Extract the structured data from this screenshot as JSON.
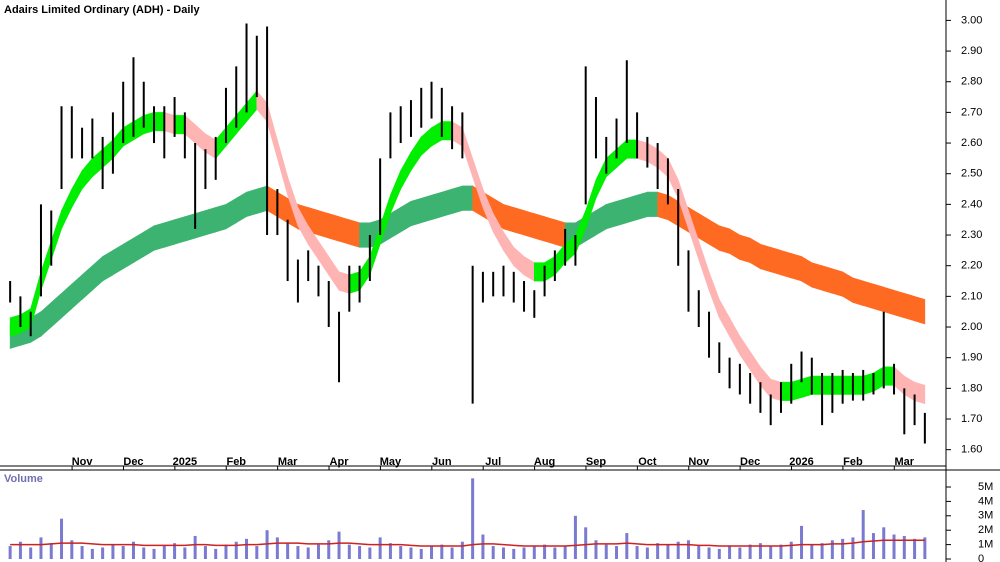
{
  "chart_data": [
    {
      "type": "ohlc",
      "title": "Adairs Limited Ordinary (ADH) - Daily",
      "categories": [
        null,
        null,
        null,
        null,
        null,
        null,
        null,
        "Nov",
        null,
        null,
        null,
        null,
        "Dec",
        null,
        null,
        null,
        null,
        "2025",
        null,
        null,
        null,
        null,
        "Feb",
        null,
        null,
        null,
        null,
        "Mar",
        null,
        null,
        null,
        null,
        "Apr",
        null,
        null,
        null,
        null,
        "May",
        null,
        null,
        null,
        null,
        "Jun",
        null,
        null,
        null,
        null,
        "Jul",
        null,
        null,
        null,
        null,
        "Aug",
        null,
        null,
        null,
        null,
        "Sep",
        null,
        null,
        null,
        null,
        "Oct",
        null,
        null,
        null,
        null,
        "Nov",
        null,
        null,
        null,
        null,
        "Dec",
        null,
        null,
        null,
        null,
        "2026",
        null,
        null,
        null,
        null,
        "Feb",
        null,
        null,
        null,
        null,
        "Mar",
        null,
        null
      ],
      "high": [
        2.15,
        2.1,
        2.05,
        2.4,
        2.38,
        2.72,
        2.72,
        2.65,
        2.68,
        2.62,
        2.7,
        2.8,
        2.88,
        2.8,
        2.72,
        2.72,
        2.75,
        2.7,
        2.6,
        2.58,
        2.62,
        2.78,
        2.85,
        2.99,
        2.95,
        2.98,
        2.45,
        2.35,
        2.22,
        2.25,
        2.2,
        2.15,
        2.05,
        2.2,
        2.2,
        2.3,
        2.55,
        2.7,
        2.72,
        2.74,
        2.78,
        2.8,
        2.78,
        2.72,
        2.7,
        2.2,
        2.18,
        2.18,
        2.2,
        2.18,
        2.15,
        2.12,
        2.2,
        2.25,
        2.32,
        2.3,
        2.85,
        2.75,
        2.62,
        2.68,
        2.87,
        2.7,
        2.62,
        2.6,
        2.55,
        2.45,
        2.25,
        2.12,
        2.05,
        1.95,
        1.9,
        1.88,
        1.85,
        1.82,
        1.78,
        1.82,
        1.88,
        1.92,
        1.9,
        1.85,
        1.85,
        1.86,
        1.85,
        1.86,
        1.85,
        2.05,
        1.88,
        1.8,
        1.78,
        1.72
      ],
      "low": [
        2.08,
        2.0,
        1.97,
        2.1,
        2.2,
        2.45,
        2.55,
        2.55,
        2.55,
        2.45,
        2.5,
        2.6,
        2.62,
        2.65,
        2.6,
        2.55,
        2.62,
        2.55,
        2.32,
        2.45,
        2.48,
        2.6,
        2.65,
        2.7,
        2.75,
        2.3,
        2.3,
        2.15,
        2.08,
        2.15,
        2.1,
        2.0,
        1.82,
        2.05,
        2.08,
        2.15,
        2.3,
        2.55,
        2.6,
        2.62,
        2.65,
        2.68,
        2.62,
        2.58,
        2.55,
        1.75,
        2.08,
        2.1,
        2.1,
        2.08,
        2.05,
        2.03,
        2.1,
        2.15,
        2.2,
        2.2,
        2.4,
        2.55,
        2.5,
        2.55,
        2.6,
        2.55,
        2.52,
        2.45,
        2.4,
        2.2,
        2.05,
        2.0,
        1.9,
        1.85,
        1.8,
        1.78,
        1.75,
        1.72,
        1.68,
        1.72,
        1.75,
        1.82,
        1.78,
        1.68,
        1.72,
        1.75,
        1.76,
        1.76,
        1.78,
        1.8,
        1.78,
        1.65,
        1.68,
        1.62
      ],
      "ribbons": [
        {
          "upper": [
            2.03,
            2.04,
            2.06,
            2.18,
            2.28,
            2.38,
            2.45,
            2.51,
            2.55,
            2.58,
            2.61,
            2.65,
            2.67,
            2.69,
            2.7,
            2.7,
            2.69,
            2.69,
            2.66,
            2.63,
            2.61,
            2.65,
            2.69,
            2.73,
            2.77,
            2.73,
            2.61,
            2.49,
            2.39,
            2.33,
            2.28,
            2.23,
            2.18,
            2.17,
            2.18,
            2.23,
            2.33,
            2.43,
            2.51,
            2.57,
            2.62,
            2.65,
            2.67,
            2.67,
            2.65,
            2.55,
            2.45,
            2.37,
            2.31,
            2.26,
            2.23,
            2.21,
            2.21,
            2.23,
            2.27,
            2.3,
            2.38,
            2.48,
            2.55,
            2.58,
            2.61,
            2.61,
            2.6,
            2.58,
            2.55,
            2.48,
            2.38,
            2.28,
            2.18,
            2.09,
            2.03,
            1.97,
            1.92,
            1.87,
            1.83,
            1.82,
            1.82,
            1.83,
            1.84,
            1.84,
            1.84,
            1.84,
            1.84,
            1.84,
            1.85,
            1.87,
            1.87,
            1.84,
            1.82,
            1.81
          ],
          "lower": [
            1.97,
            1.98,
            2.0,
            2.12,
            2.22,
            2.32,
            2.39,
            2.45,
            2.49,
            2.52,
            2.55,
            2.59,
            2.61,
            2.63,
            2.64,
            2.64,
            2.63,
            2.63,
            2.6,
            2.57,
            2.55,
            2.59,
            2.63,
            2.67,
            2.71,
            2.67,
            2.55,
            2.43,
            2.33,
            2.27,
            2.22,
            2.17,
            2.12,
            2.11,
            2.12,
            2.17,
            2.27,
            2.37,
            2.45,
            2.51,
            2.56,
            2.59,
            2.61,
            2.61,
            2.59,
            2.49,
            2.39,
            2.31,
            2.25,
            2.2,
            2.17,
            2.15,
            2.15,
            2.17,
            2.21,
            2.24,
            2.32,
            2.42,
            2.49,
            2.52,
            2.55,
            2.55,
            2.54,
            2.52,
            2.49,
            2.42,
            2.32,
            2.22,
            2.12,
            2.03,
            1.97,
            1.91,
            1.86,
            1.81,
            1.77,
            1.76,
            1.76,
            1.77,
            1.78,
            1.78,
            1.78,
            1.78,
            1.78,
            1.78,
            1.79,
            1.81,
            1.81,
            1.78,
            1.76,
            1.75
          ],
          "up_color": "#00ee00",
          "down_color": "#ffb4b4"
        },
        {
          "upper": [
            2.01,
            2.02,
            2.03,
            2.05,
            2.08,
            2.11,
            2.14,
            2.17,
            2.2,
            2.23,
            2.25,
            2.27,
            2.29,
            2.31,
            2.33,
            2.34,
            2.35,
            2.36,
            2.37,
            2.38,
            2.39,
            2.4,
            2.42,
            2.44,
            2.45,
            2.46,
            2.44,
            2.42,
            2.4,
            2.39,
            2.38,
            2.37,
            2.36,
            2.35,
            2.34,
            2.34,
            2.35,
            2.37,
            2.39,
            2.41,
            2.42,
            2.43,
            2.44,
            2.45,
            2.46,
            2.46,
            2.44,
            2.42,
            2.4,
            2.39,
            2.38,
            2.37,
            2.36,
            2.35,
            2.34,
            2.34,
            2.36,
            2.38,
            2.4,
            2.41,
            2.42,
            2.43,
            2.44,
            2.44,
            2.43,
            2.41,
            2.39,
            2.37,
            2.35,
            2.33,
            2.32,
            2.3,
            2.29,
            2.27,
            2.26,
            2.25,
            2.24,
            2.23,
            2.21,
            2.2,
            2.19,
            2.18,
            2.16,
            2.15,
            2.14,
            2.13,
            2.12,
            2.11,
            2.1,
            2.09
          ],
          "lower": [
            1.93,
            1.94,
            1.95,
            1.97,
            2.0,
            2.03,
            2.06,
            2.09,
            2.12,
            2.15,
            2.17,
            2.19,
            2.21,
            2.23,
            2.25,
            2.26,
            2.27,
            2.28,
            2.29,
            2.3,
            2.31,
            2.32,
            2.34,
            2.36,
            2.37,
            2.38,
            2.36,
            2.34,
            2.32,
            2.31,
            2.3,
            2.29,
            2.28,
            2.27,
            2.26,
            2.26,
            2.27,
            2.29,
            2.31,
            2.33,
            2.34,
            2.35,
            2.36,
            2.37,
            2.38,
            2.38,
            2.36,
            2.34,
            2.32,
            2.31,
            2.3,
            2.29,
            2.28,
            2.27,
            2.26,
            2.26,
            2.28,
            2.3,
            2.32,
            2.33,
            2.34,
            2.35,
            2.36,
            2.36,
            2.35,
            2.33,
            2.31,
            2.29,
            2.27,
            2.25,
            2.24,
            2.22,
            2.21,
            2.19,
            2.18,
            2.17,
            2.16,
            2.15,
            2.13,
            2.12,
            2.11,
            2.1,
            2.08,
            2.07,
            2.06,
            2.05,
            2.04,
            2.03,
            2.02,
            2.01
          ],
          "up_color": "#3cb371",
          "down_color": "#ff6a22"
        }
      ],
      "color": "#000000",
      "ylim": [
        1.55,
        3.06
      ],
      "yticks": [
        {
          "value": 1.6,
          "label": "1.60"
        },
        {
          "value": 1.7,
          "label": "1.70"
        },
        {
          "value": 1.8,
          "label": "1.80"
        },
        {
          "value": 1.9,
          "label": "1.90"
        },
        {
          "value": 2.0,
          "label": "2.00"
        },
        {
          "value": 2.1,
          "label": "2.10"
        },
        {
          "value": 2.2,
          "label": "2.20"
        },
        {
          "value": 2.3,
          "label": "2.30"
        },
        {
          "value": 2.4,
          "label": "2.40"
        },
        {
          "value": 2.5,
          "label": "2.50"
        },
        {
          "value": 2.6,
          "label": "2.60"
        },
        {
          "value": 2.7,
          "label": "2.70"
        },
        {
          "value": 2.8,
          "label": "2.80"
        },
        {
          "value": 2.9,
          "label": "2.90"
        },
        {
          "value": 3.0,
          "label": "3.00"
        }
      ]
    },
    {
      "type": "volume",
      "title": "Volume",
      "color": "#7a7ad0",
      "ma_color": "#cc2222",
      "values": [
        900000,
        1200000,
        800000,
        1500000,
        1100000,
        2800000,
        1300000,
        900000,
        700000,
        800000,
        1000000,
        900000,
        1200000,
        800000,
        700000,
        900000,
        1100000,
        800000,
        1600000,
        900000,
        700000,
        1000000,
        1200000,
        1400000,
        900000,
        2000000,
        1500000,
        1100000,
        900000,
        800000,
        1000000,
        1300000,
        1900000,
        1000000,
        900000,
        800000,
        1500000,
        1100000,
        900000,
        800000,
        700000,
        900000,
        1000000,
        800000,
        1200000,
        5600000,
        1700000,
        900000,
        800000,
        700000,
        800000,
        900000,
        1000000,
        800000,
        900000,
        3000000,
        2200000,
        1300000,
        1000000,
        900000,
        1800000,
        900000,
        800000,
        1100000,
        1000000,
        1200000,
        1300000,
        900000,
        800000,
        700000,
        900000,
        800000,
        1000000,
        1100000,
        900000,
        1000000,
        1200000,
        2300000,
        1000000,
        1100000,
        1300000,
        1400000,
        1500000,
        3400000,
        1800000,
        2200000,
        1700000,
        1600000,
        1400000,
        1500000
      ],
      "ma_values": [
        1000000,
        1000000,
        1000000,
        1000000,
        1050000,
        1100000,
        1100000,
        1100000,
        1050000,
        1000000,
        1000000,
        1000000,
        1000000,
        950000,
        950000,
        950000,
        950000,
        950000,
        1000000,
        1000000,
        950000,
        950000,
        950000,
        1000000,
        1000000,
        1050000,
        1100000,
        1100000,
        1100000,
        1050000,
        1050000,
        1050000,
        1100000,
        1100000,
        1050000,
        1000000,
        1000000,
        1000000,
        1000000,
        950000,
        900000,
        900000,
        900000,
        900000,
        900000,
        1000000,
        1050000,
        1050000,
        1000000,
        950000,
        900000,
        900000,
        900000,
        900000,
        900000,
        950000,
        1000000,
        1050000,
        1050000,
        1050000,
        1100000,
        1050000,
        1000000,
        1000000,
        1000000,
        1000000,
        1000000,
        950000,
        950000,
        900000,
        900000,
        900000,
        900000,
        900000,
        900000,
        900000,
        950000,
        1000000,
        1000000,
        1000000,
        1050000,
        1050000,
        1100000,
        1200000,
        1250000,
        1300000,
        1300000,
        1300000,
        1300000,
        1300000
      ],
      "ylim": [
        0,
        6000000
      ],
      "yticks": [
        0,
        {
          "value": 1000000,
          "label": "1M"
        },
        {
          "value": 2000000,
          "label": "2M"
        },
        {
          "value": 3000000,
          "label": "3M"
        },
        {
          "value": 4000000,
          "label": "4M"
        },
        {
          "value": 5000000,
          "label": "5M"
        }
      ]
    }
  ]
}
